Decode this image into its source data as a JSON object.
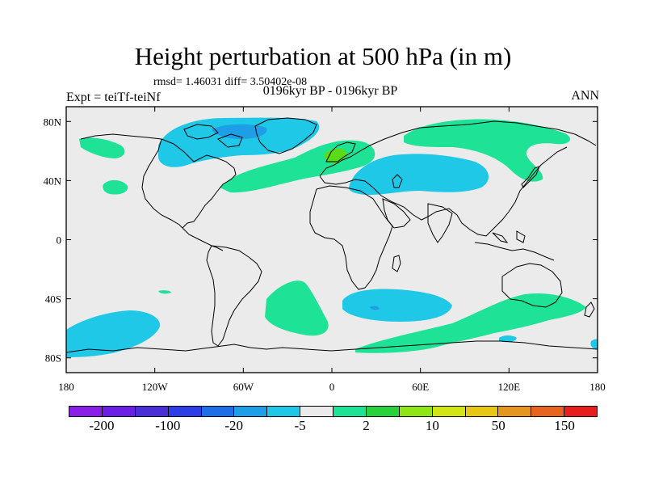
{
  "title": "Height perturbation at 500 hPa (in m)",
  "stats_text": "rmsd= 1.46031 diff= 3.50402e-08",
  "left_label": "Expt = teiTf-teiNf",
  "center_label": "0196kyr BP - 0196kyr BP",
  "right_label": "ANN",
  "map": {
    "lon_range": [
      -180,
      180
    ],
    "lat_range": [
      -90,
      90
    ],
    "x_tick_labels": [
      "180",
      "120W",
      "60W",
      "0",
      "60E",
      "120E",
      "180"
    ],
    "y_tick_labels": [
      "80N",
      "40N",
      "0",
      "40S",
      "80S"
    ],
    "background_color": "#ebebeb",
    "positive_color": "#1ee296",
    "negative_color": "#1ec8e6",
    "strong_positive_color": "#5adc14",
    "strong_negative_color": "#1e9ee6"
  },
  "colorbar": {
    "colors": [
      "#8a1ee6",
      "#6a1ee6",
      "#4a2ed6",
      "#2e3ee6",
      "#1e6ee6",
      "#1e9ee6",
      "#1ec8e6",
      "#ebebeb",
      "#1ee296",
      "#28d23c",
      "#8ee614",
      "#d2e614",
      "#e6c814",
      "#e6961e",
      "#e6641e",
      "#e61e1e"
    ],
    "labels": [
      "-200",
      "-100",
      "-20",
      "-5",
      "2",
      "10",
      "50",
      "150"
    ]
  }
}
